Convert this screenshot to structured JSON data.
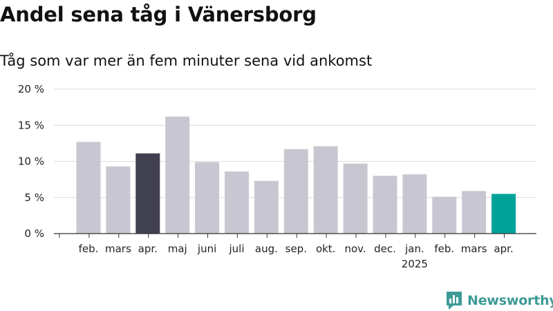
{
  "title": "Andel sena tåg i Vänersborg",
  "subtitle": "Tåg som var mer än fem minuter sena vid ankomst",
  "brand": {
    "name": "Newsworthy",
    "color": "#3d9b97",
    "icon": "newsworthy-logo-icon"
  },
  "colors": {
    "bar_default": "#c8c7d1",
    "bar_highlight_prev": "#41404f",
    "bar_highlight_current": "#00a39a",
    "grid": "#dcdcdc",
    "axis": "#333333"
  },
  "chart_data": {
    "type": "bar",
    "categories": [
      "feb.",
      "mars",
      "apr.",
      "maj",
      "juni",
      "juli",
      "aug.",
      "sep.",
      "okt.",
      "nov.",
      "dec.",
      "jan.",
      "feb.",
      "mars",
      "apr."
    ],
    "year_labels": [
      {
        "index": 11,
        "label": "2025"
      }
    ],
    "values": [
      12.7,
      9.3,
      11.1,
      16.2,
      9.9,
      8.6,
      7.3,
      11.7,
      12.1,
      9.7,
      8.0,
      8.2,
      5.1,
      5.9,
      5.5
    ],
    "highlight": {
      "previous_index": 2,
      "current_index": 14
    },
    "ylim": [
      0,
      20
    ],
    "yticks": [
      0,
      5,
      10,
      15,
      20
    ],
    "ytick_labels": [
      "0 %",
      "5 %",
      "10 %",
      "15 %",
      "20 %"
    ],
    "grid": true,
    "xlabel": "",
    "ylabel": ""
  }
}
